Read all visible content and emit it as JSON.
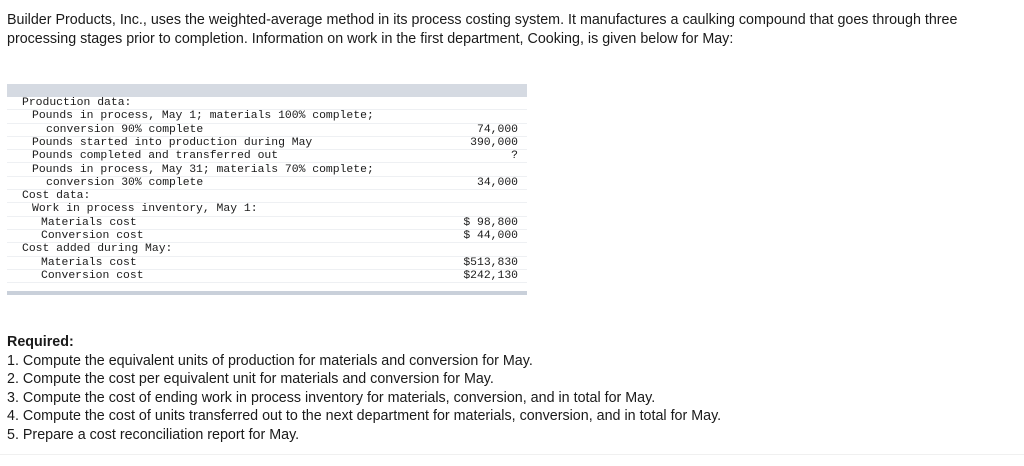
{
  "intro": "Builder Products, Inc., uses the weighted-average method in its process costing system. It manufactures a caulking compound that goes through three processing stages prior to completion. Information on work in the first department, Cooking, is given below for May:",
  "table": {
    "rows": [
      {
        "label": "Production data:",
        "value": ""
      },
      {
        "label": "Pounds in process, May 1; materials 100% complete;",
        "value": ""
      },
      {
        "label": "conversion 90% complete",
        "value": "74,000"
      },
      {
        "label": "Pounds started into production during May",
        "value": "390,000"
      },
      {
        "label": "Pounds completed and transferred out",
        "value": "?"
      },
      {
        "label": "Pounds in process, May 31; materials 70% complete;",
        "value": ""
      },
      {
        "label": "conversion 30% complete",
        "value": "34,000"
      },
      {
        "label": "Cost data:",
        "value": ""
      },
      {
        "label": "Work in process inventory, May 1:",
        "value": ""
      },
      {
        "label": "Materials cost",
        "value": "$ 98,800"
      },
      {
        "label": "Conversion cost",
        "value": "$ 44,000"
      },
      {
        "label": "Cost added during May:",
        "value": ""
      },
      {
        "label": "Materials cost",
        "value": "$513,830"
      },
      {
        "label": "Conversion cost",
        "value": "$242,130"
      }
    ]
  },
  "required": {
    "heading": "Required:",
    "items": [
      "1. Compute the equivalent units of production for materials and conversion for May.",
      "2. Compute the cost per equivalent unit for materials and conversion for May.",
      "3. Compute the cost of ending work in process inventory for materials, conversion, and in total for May.",
      "4. Compute the cost of units transferred out to the next department for materials, conversion, and in total for May.",
      "5. Prepare a cost reconciliation report for May."
    ]
  }
}
